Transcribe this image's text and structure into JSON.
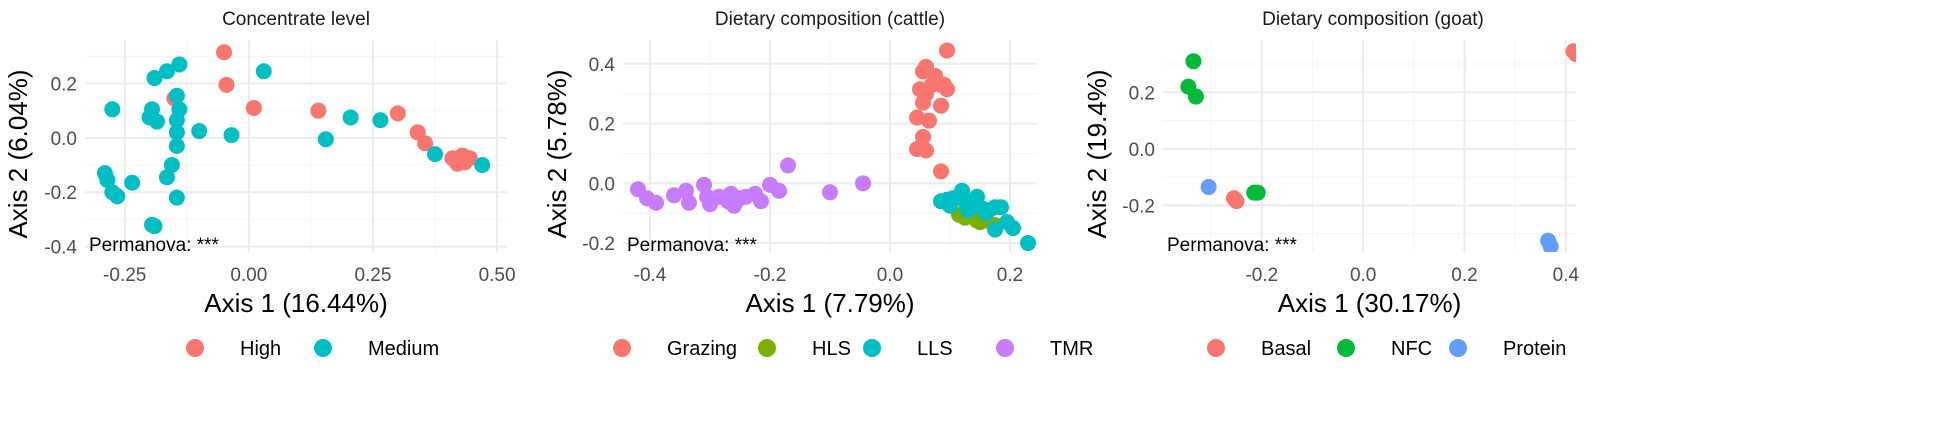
{
  "chart_data": [
    {
      "type": "scatter",
      "title": "Concentrate level",
      "xlabel": "Axis 1 (16.44%)",
      "ylabel": "Axis 2 (6.04%)",
      "xlim": [
        -0.33,
        0.52
      ],
      "ylim": [
        -0.42,
        0.36
      ],
      "xticks": [
        -0.25,
        0,
        0.25,
        0.5
      ],
      "xtick_labels": [
        "-0.25",
        "0.00",
        "0.25",
        "0.50"
      ],
      "yticks": [
        -0.4,
        -0.2,
        0.0,
        0.2
      ],
      "ytick_labels": [
        "-0.4",
        "-0.2",
        "0.0",
        "0.2"
      ],
      "annotation": "Permanova: ***",
      "series": [
        {
          "name": "High",
          "color": "#F8766D",
          "points": [
            [
              -0.05,
              0.315
            ],
            [
              -0.045,
              0.195
            ],
            [
              0.01,
              0.11
            ],
            [
              -0.15,
              0.145
            ],
            [
              0.14,
              0.1
            ],
            [
              0.3,
              0.09
            ],
            [
              0.34,
              0.02
            ],
            [
              0.355,
              -0.02
            ],
            [
              0.41,
              -0.075
            ],
            [
              0.43,
              -0.065
            ],
            [
              0.435,
              -0.09
            ],
            [
              0.445,
              -0.075
            ],
            [
              0.42,
              -0.095
            ]
          ]
        },
        {
          "name": "Medium",
          "color": "#00BFC4",
          "points": [
            [
              -0.14,
              0.27
            ],
            [
              -0.165,
              0.245
            ],
            [
              -0.19,
              0.22
            ],
            [
              -0.145,
              0.155
            ],
            [
              -0.275,
              0.105
            ],
            [
              -0.195,
              0.105
            ],
            [
              -0.14,
              0.105
            ],
            [
              -0.2,
              0.075
            ],
            [
              -0.185,
              0.06
            ],
            [
              -0.145,
              0.065
            ],
            [
              -0.145,
              0.02
            ],
            [
              -0.1,
              0.025
            ],
            [
              -0.035,
              0.01
            ],
            [
              -0.145,
              -0.03
            ],
            [
              -0.155,
              -0.1
            ],
            [
              -0.165,
              -0.145
            ],
            [
              -0.235,
              -0.165
            ],
            [
              -0.29,
              -0.13
            ],
            [
              -0.285,
              -0.155
            ],
            [
              -0.275,
              -0.2
            ],
            [
              -0.265,
              -0.215
            ],
            [
              -0.145,
              -0.22
            ],
            [
              -0.195,
              -0.32
            ],
            [
              -0.19,
              -0.325
            ],
            [
              0.03,
              0.245
            ],
            [
              0.205,
              0.075
            ],
            [
              0.265,
              0.065
            ],
            [
              0.155,
              -0.005
            ],
            [
              0.375,
              -0.06
            ],
            [
              0.47,
              -0.1
            ]
          ]
        }
      ]
    },
    {
      "type": "scatter",
      "title": "Dietary composition (cattle)",
      "xlabel": "Axis 1 (7.79%)",
      "ylabel": "Axis 2 (5.78%)",
      "xlim": [
        -0.445,
        0.245
      ],
      "ylim": [
        -0.23,
        0.48
      ],
      "xticks": [
        -0.4,
        -0.2,
        0.0,
        0.2
      ],
      "xtick_labels": [
        "-0.4",
        "-0.2",
        "0.0",
        "0.2"
      ],
      "yticks": [
        -0.2,
        0.0,
        0.2,
        0.4
      ],
      "ytick_labels": [
        "-0.2",
        "0.0",
        "0.2",
        "0.4"
      ],
      "annotation": "Permanova: ***",
      "series": [
        {
          "name": "Grazing",
          "color": "#F8766D",
          "points": [
            [
              0.095,
              0.445
            ],
            [
              0.055,
              0.375
            ],
            [
              0.06,
              0.39
            ],
            [
              0.07,
              0.33
            ],
            [
              0.075,
              0.36
            ],
            [
              0.085,
              0.33
            ],
            [
              0.09,
              0.33
            ],
            [
              0.095,
              0.315
            ],
            [
              0.05,
              0.315
            ],
            [
              0.055,
              0.27
            ],
            [
              0.06,
              0.3
            ],
            [
              0.085,
              0.26
            ],
            [
              0.045,
              0.22
            ],
            [
              0.065,
              0.21
            ],
            [
              0.055,
              0.155
            ],
            [
              0.045,
              0.115
            ],
            [
              0.06,
              0.11
            ],
            [
              0.085,
              0.04
            ]
          ]
        },
        {
          "name": "HLS",
          "color": "#7CAE00",
          "points": [
            [
              0.115,
              -0.105
            ],
            [
              0.125,
              -0.115
            ],
            [
              0.135,
              -0.11
            ],
            [
              0.145,
              -0.125
            ],
            [
              0.16,
              -0.125
            ],
            [
              0.175,
              -0.14
            ],
            [
              0.15,
              -0.13
            ]
          ]
        },
        {
          "name": "LLS",
          "color": "#00BFC4",
          "points": [
            [
              0.095,
              -0.055
            ],
            [
              0.105,
              -0.05
            ],
            [
              0.115,
              -0.045
            ],
            [
              0.125,
              -0.06
            ],
            [
              0.135,
              -0.07
            ],
            [
              0.145,
              -0.045
            ],
            [
              0.155,
              -0.085
            ],
            [
              0.165,
              -0.09
            ],
            [
              0.175,
              -0.08
            ],
            [
              0.185,
              -0.08
            ],
            [
              0.195,
              -0.13
            ],
            [
              0.205,
              -0.15
            ],
            [
              0.175,
              -0.155
            ],
            [
              0.23,
              -0.2
            ],
            [
              0.085,
              -0.06
            ],
            [
              0.1,
              -0.075
            ],
            [
              0.13,
              -0.09
            ],
            [
              0.16,
              -0.1
            ],
            [
              0.12,
              -0.025
            ]
          ]
        },
        {
          "name": "TMR",
          "color": "#C77CFF",
          "points": [
            [
              -0.42,
              -0.02
            ],
            [
              -0.405,
              -0.05
            ],
            [
              -0.39,
              -0.065
            ],
            [
              -0.36,
              -0.04
            ],
            [
              -0.34,
              -0.025
            ],
            [
              -0.335,
              -0.065
            ],
            [
              -0.31,
              -0.005
            ],
            [
              -0.305,
              -0.045
            ],
            [
              -0.3,
              -0.07
            ],
            [
              -0.285,
              -0.045
            ],
            [
              -0.27,
              -0.06
            ],
            [
              -0.265,
              -0.035
            ],
            [
              -0.26,
              -0.075
            ],
            [
              -0.25,
              -0.05
            ],
            [
              -0.24,
              -0.045
            ],
            [
              -0.225,
              -0.035
            ],
            [
              -0.215,
              -0.06
            ],
            [
              -0.2,
              -0.005
            ],
            [
              -0.185,
              -0.025
            ],
            [
              -0.17,
              0.06
            ],
            [
              -0.1,
              -0.03
            ],
            [
              -0.045,
              0.0
            ]
          ]
        }
      ]
    },
    {
      "type": "scatter",
      "title": "Dietary composition (goat)",
      "xlabel": "Axis 1 (30.17%)",
      "ylabel": "Axis 2 (19.4%)",
      "xlim": [
        -0.395,
        0.42
      ],
      "ylim": [
        -0.365,
        0.385
      ],
      "xticks": [
        -0.2,
        0.0,
        0.2,
        0.4
      ],
      "xtick_labels": [
        "-0.2",
        "0.0",
        "0.2",
        "0.4"
      ],
      "yticks": [
        -0.2,
        0.0,
        0.2
      ],
      "ytick_labels": [
        "-0.2",
        "0.0",
        "0.2"
      ],
      "annotation": "Permanova: ***",
      "series": [
        {
          "name": "Basal",
          "color": "#F8766D",
          "points": [
            [
              -0.255,
              -0.175
            ],
            [
              -0.25,
              -0.185
            ],
            [
              0.415,
              0.345
            ],
            [
              0.42,
              0.335
            ]
          ]
        },
        {
          "name": "NFC",
          "color": "#00BA38",
          "points": [
            [
              -0.335,
              0.31
            ],
            [
              -0.345,
              0.22
            ],
            [
              -0.33,
              0.185
            ],
            [
              -0.215,
              -0.155
            ],
            [
              -0.208,
              -0.155
            ]
          ]
        },
        {
          "name": "Protein",
          "color": "#619CFF",
          "points": [
            [
              -0.305,
              -0.135
            ],
            [
              0.365,
              -0.325
            ],
            [
              0.37,
              -0.345
            ]
          ]
        }
      ]
    }
  ]
}
